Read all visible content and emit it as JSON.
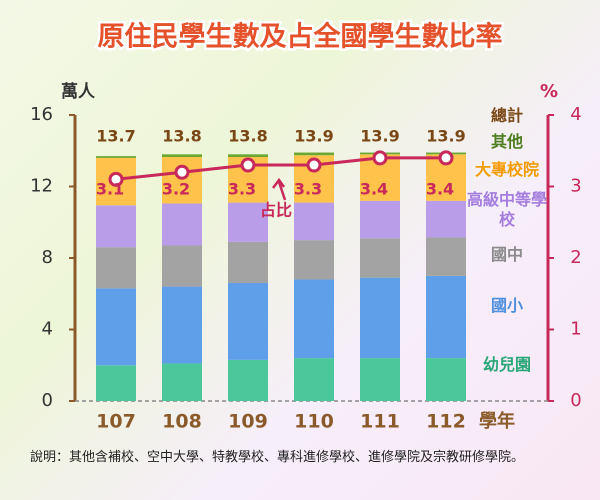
{
  "chart_data": {
    "type": "bar",
    "stacked": true,
    "title": "原住民學生數及占全國學生數比率",
    "y_label": "萬人",
    "y2_label": "%",
    "x_label": "學年",
    "categories": [
      "107",
      "108",
      "109",
      "110",
      "111",
      "112"
    ],
    "ylim": [
      0,
      16
    ],
    "yticks": [
      0,
      4,
      8,
      12,
      16
    ],
    "y2lim": [
      0,
      4
    ],
    "y2ticks": [
      0,
      1,
      2,
      3,
      4
    ],
    "series": [
      {
        "name": "幼兒園",
        "color": "#4cc79c",
        "text_color": "#27a676",
        "values": [
          2.0,
          2.1,
          2.3,
          2.4,
          2.4,
          2.4
        ]
      },
      {
        "name": "國小",
        "color": "#5f9ee9",
        "text_color": "#4f8fe0",
        "values": [
          4.3,
          4.3,
          4.3,
          4.4,
          4.5,
          4.6
        ]
      },
      {
        "name": "國中",
        "color": "#a3a3a3",
        "text_color": "#8a8a8a",
        "values": [
          2.3,
          2.3,
          2.3,
          2.2,
          2.2,
          2.15
        ]
      },
      {
        "name": "高級中等學校",
        "color": "#b99de9",
        "text_color": "#a57ddf",
        "values": [
          2.35,
          2.35,
          2.2,
          2.1,
          2.1,
          2.05
        ]
      },
      {
        "name": "大專校院",
        "color": "#ffc24a",
        "text_color": "#f39c00",
        "values": [
          2.65,
          2.6,
          2.55,
          2.65,
          2.6,
          2.6
        ]
      },
      {
        "name": "其他",
        "color": "#6aa833",
        "text_color": "#4d7d1f",
        "values": [
          0.1,
          0.15,
          0.15,
          0.15,
          0.1,
          0.1
        ]
      }
    ],
    "totals": {
      "name": "總計",
      "color": "#7a4816",
      "values": [
        13.7,
        13.8,
        13.8,
        13.9,
        13.9,
        13.9
      ]
    },
    "line": {
      "name": "占比",
      "type": "line",
      "axis": "y2",
      "color": "#c8285a",
      "values": [
        3.1,
        3.2,
        3.3,
        3.3,
        3.4,
        3.4
      ]
    },
    "note": "說明：其他含補校、空中大學、特教學校、專科進修學校、進修學院及宗教研修學院。"
  }
}
